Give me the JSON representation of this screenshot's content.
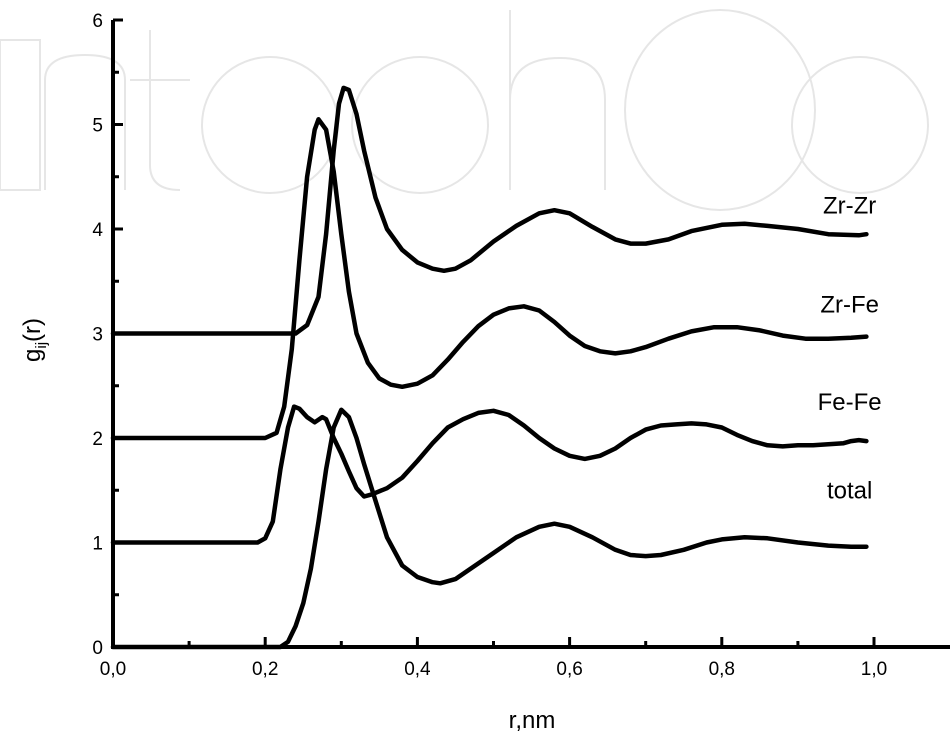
{
  "chart_data": {
    "type": "line",
    "xlabel": "r,nm",
    "ylabel_main": "g",
    "ylabel_sub": "ij",
    "ylabel_tail": "(r)",
    "xlim": [
      0.0,
      1.0
    ],
    "ylim": [
      0,
      6
    ],
    "x_ticks": [
      {
        "value": 0.0,
        "label": "0,0"
      },
      {
        "value": 0.2,
        "label": "0,2"
      },
      {
        "value": 0.4,
        "label": "0,4"
      },
      {
        "value": 0.6,
        "label": "0,6"
      },
      {
        "value": 0.8,
        "label": "0,8"
      },
      {
        "value": 1.0,
        "label": "1,0"
      }
    ],
    "y_ticks": [
      {
        "value": 0,
        "label": "0"
      },
      {
        "value": 1,
        "label": "1"
      },
      {
        "value": 2,
        "label": "2"
      },
      {
        "value": 3,
        "label": "3"
      },
      {
        "value": 4,
        "label": "4"
      },
      {
        "value": 5,
        "label": "5"
      },
      {
        "value": 6,
        "label": "6"
      }
    ],
    "grid": false,
    "series": [
      {
        "name": "Zr-Zr",
        "label_anchor": [
          0.968,
          4.15
        ],
        "points": [
          [
            0.0,
            3.0
          ],
          [
            0.2,
            3.0
          ],
          [
            0.24,
            3.0
          ],
          [
            0.255,
            3.08
          ],
          [
            0.27,
            3.35
          ],
          [
            0.28,
            3.95
          ],
          [
            0.29,
            4.75
          ],
          [
            0.297,
            5.2
          ],
          [
            0.303,
            5.35
          ],
          [
            0.31,
            5.33
          ],
          [
            0.32,
            5.1
          ],
          [
            0.33,
            4.75
          ],
          [
            0.345,
            4.3
          ],
          [
            0.36,
            4.0
          ],
          [
            0.38,
            3.8
          ],
          [
            0.4,
            3.68
          ],
          [
            0.42,
            3.62
          ],
          [
            0.435,
            3.6
          ],
          [
            0.45,
            3.62
          ],
          [
            0.47,
            3.7
          ],
          [
            0.5,
            3.88
          ],
          [
            0.53,
            4.03
          ],
          [
            0.56,
            4.15
          ],
          [
            0.58,
            4.18
          ],
          [
            0.6,
            4.15
          ],
          [
            0.63,
            4.02
          ],
          [
            0.66,
            3.9
          ],
          [
            0.68,
            3.86
          ],
          [
            0.7,
            3.86
          ],
          [
            0.73,
            3.9
          ],
          [
            0.76,
            3.98
          ],
          [
            0.8,
            4.04
          ],
          [
            0.83,
            4.05
          ],
          [
            0.86,
            4.03
          ],
          [
            0.9,
            4.0
          ],
          [
            0.94,
            3.95
          ],
          [
            0.98,
            3.94
          ],
          [
            0.99,
            3.95
          ]
        ]
      },
      {
        "name": "Zr-Fe",
        "label_anchor": [
          0.968,
          3.2
        ],
        "points": [
          [
            0.0,
            2.0
          ],
          [
            0.2,
            2.0
          ],
          [
            0.215,
            2.05
          ],
          [
            0.225,
            2.3
          ],
          [
            0.235,
            2.85
          ],
          [
            0.245,
            3.7
          ],
          [
            0.255,
            4.5
          ],
          [
            0.265,
            4.95
          ],
          [
            0.27,
            5.05
          ],
          [
            0.28,
            4.95
          ],
          [
            0.29,
            4.55
          ],
          [
            0.3,
            3.95
          ],
          [
            0.31,
            3.4
          ],
          [
            0.32,
            3.0
          ],
          [
            0.335,
            2.72
          ],
          [
            0.35,
            2.57
          ],
          [
            0.365,
            2.51
          ],
          [
            0.38,
            2.49
          ],
          [
            0.4,
            2.52
          ],
          [
            0.42,
            2.6
          ],
          [
            0.44,
            2.75
          ],
          [
            0.46,
            2.92
          ],
          [
            0.48,
            3.07
          ],
          [
            0.5,
            3.18
          ],
          [
            0.52,
            3.24
          ],
          [
            0.54,
            3.26
          ],
          [
            0.56,
            3.22
          ],
          [
            0.58,
            3.11
          ],
          [
            0.6,
            2.98
          ],
          [
            0.62,
            2.88
          ],
          [
            0.64,
            2.83
          ],
          [
            0.66,
            2.81
          ],
          [
            0.68,
            2.83
          ],
          [
            0.7,
            2.87
          ],
          [
            0.73,
            2.95
          ],
          [
            0.76,
            3.02
          ],
          [
            0.79,
            3.06
          ],
          [
            0.82,
            3.06
          ],
          [
            0.85,
            3.03
          ],
          [
            0.88,
            2.98
          ],
          [
            0.91,
            2.95
          ],
          [
            0.94,
            2.95
          ],
          [
            0.97,
            2.96
          ],
          [
            0.99,
            2.97
          ]
        ]
      },
      {
        "name": "Fe-Fe",
        "label_anchor": [
          0.968,
          2.27
        ],
        "points": [
          [
            0.0,
            1.0
          ],
          [
            0.19,
            1.0
          ],
          [
            0.2,
            1.04
          ],
          [
            0.21,
            1.2
          ],
          [
            0.22,
            1.7
          ],
          [
            0.23,
            2.1
          ],
          [
            0.238,
            2.3
          ],
          [
            0.245,
            2.28
          ],
          [
            0.255,
            2.2
          ],
          [
            0.265,
            2.15
          ],
          [
            0.275,
            2.2
          ],
          [
            0.28,
            2.18
          ],
          [
            0.29,
            2.0
          ],
          [
            0.3,
            1.85
          ],
          [
            0.31,
            1.68
          ],
          [
            0.32,
            1.52
          ],
          [
            0.33,
            1.44
          ],
          [
            0.34,
            1.46
          ],
          [
            0.36,
            1.52
          ],
          [
            0.38,
            1.62
          ],
          [
            0.4,
            1.78
          ],
          [
            0.42,
            1.95
          ],
          [
            0.44,
            2.1
          ],
          [
            0.46,
            2.18
          ],
          [
            0.48,
            2.24
          ],
          [
            0.5,
            2.26
          ],
          [
            0.52,
            2.22
          ],
          [
            0.54,
            2.12
          ],
          [
            0.56,
            2.0
          ],
          [
            0.58,
            1.9
          ],
          [
            0.6,
            1.83
          ],
          [
            0.62,
            1.8
          ],
          [
            0.64,
            1.83
          ],
          [
            0.66,
            1.9
          ],
          [
            0.68,
            2.0
          ],
          [
            0.7,
            2.08
          ],
          [
            0.72,
            2.12
          ],
          [
            0.74,
            2.13
          ],
          [
            0.76,
            2.14
          ],
          [
            0.78,
            2.13
          ],
          [
            0.8,
            2.1
          ],
          [
            0.82,
            2.03
          ],
          [
            0.84,
            1.97
          ],
          [
            0.86,
            1.93
          ],
          [
            0.88,
            1.92
          ],
          [
            0.9,
            1.93
          ],
          [
            0.92,
            1.93
          ],
          [
            0.94,
            1.94
          ],
          [
            0.96,
            1.95
          ],
          [
            0.97,
            1.97
          ],
          [
            0.98,
            1.98
          ],
          [
            0.99,
            1.97
          ]
        ]
      },
      {
        "name": "total",
        "label_anchor": [
          0.968,
          1.42
        ],
        "points": [
          [
            0.0,
            0.0
          ],
          [
            0.2,
            0.0
          ],
          [
            0.22,
            0.0
          ],
          [
            0.23,
            0.05
          ],
          [
            0.24,
            0.2
          ],
          [
            0.25,
            0.42
          ],
          [
            0.26,
            0.75
          ],
          [
            0.27,
            1.2
          ],
          [
            0.28,
            1.7
          ],
          [
            0.29,
            2.1
          ],
          [
            0.3,
            2.27
          ],
          [
            0.31,
            2.2
          ],
          [
            0.32,
            2.0
          ],
          [
            0.33,
            1.75
          ],
          [
            0.345,
            1.4
          ],
          [
            0.36,
            1.05
          ],
          [
            0.38,
            0.78
          ],
          [
            0.4,
            0.67
          ],
          [
            0.42,
            0.62
          ],
          [
            0.43,
            0.61
          ],
          [
            0.45,
            0.65
          ],
          [
            0.47,
            0.75
          ],
          [
            0.5,
            0.9
          ],
          [
            0.53,
            1.05
          ],
          [
            0.56,
            1.15
          ],
          [
            0.58,
            1.18
          ],
          [
            0.6,
            1.15
          ],
          [
            0.63,
            1.05
          ],
          [
            0.66,
            0.93
          ],
          [
            0.68,
            0.88
          ],
          [
            0.7,
            0.87
          ],
          [
            0.72,
            0.88
          ],
          [
            0.75,
            0.93
          ],
          [
            0.78,
            1.0
          ],
          [
            0.8,
            1.03
          ],
          [
            0.83,
            1.05
          ],
          [
            0.86,
            1.04
          ],
          [
            0.9,
            1.0
          ],
          [
            0.94,
            0.97
          ],
          [
            0.97,
            0.96
          ],
          [
            0.99,
            0.96
          ]
        ]
      }
    ]
  }
}
